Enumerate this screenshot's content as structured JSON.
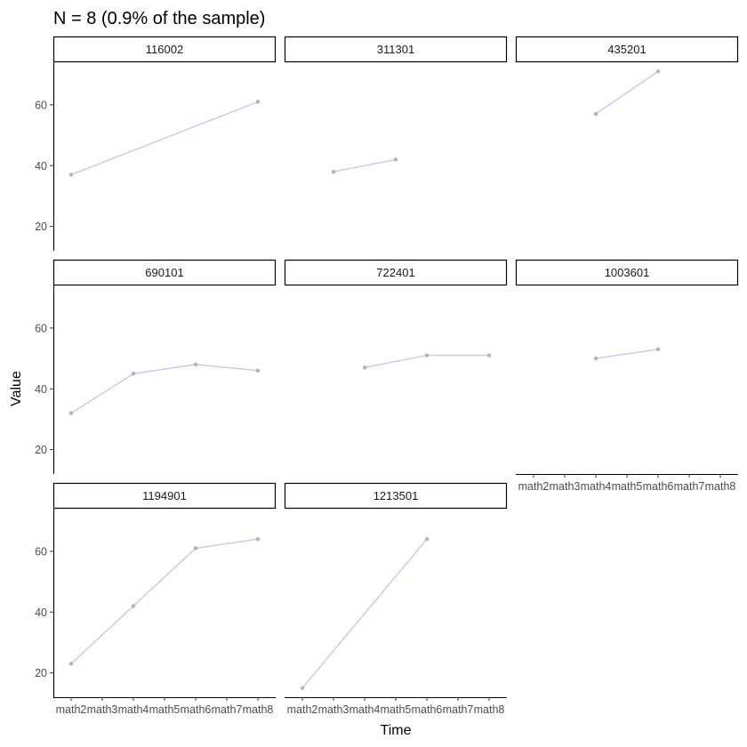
{
  "chart_data": {
    "type": "line",
    "title": "N = 8 (0.9% of the sample)",
    "xlabel": "Time",
    "ylabel": "Value",
    "categories": [
      "math2",
      "math3",
      "math4",
      "math5",
      "math6",
      "math7",
      "math8"
    ],
    "ylim": [
      12,
      74
    ],
    "yticks": [
      20,
      40,
      60
    ],
    "grid": false,
    "colors": {
      "line": "#c9c4f5",
      "point": "#a9a9c0",
      "strip_border": "#000000",
      "axis": "#000000"
    },
    "panels": [
      {
        "id": "116002",
        "points": [
          {
            "x": "math2",
            "y": 37
          },
          {
            "x": "math8",
            "y": 61
          }
        ]
      },
      {
        "id": "311301",
        "points": [
          {
            "x": "math3",
            "y": 38
          },
          {
            "x": "math5",
            "y": 42
          }
        ]
      },
      {
        "id": "435201",
        "points": [
          {
            "x": "math4",
            "y": 57
          },
          {
            "x": "math6",
            "y": 71
          }
        ]
      },
      {
        "id": "690101",
        "points": [
          {
            "x": "math2",
            "y": 32
          },
          {
            "x": "math4",
            "y": 45
          },
          {
            "x": "math6",
            "y": 48
          },
          {
            "x": "math8",
            "y": 46
          }
        ]
      },
      {
        "id": "722401",
        "points": [
          {
            "x": "math4",
            "y": 47
          },
          {
            "x": "math6",
            "y": 51
          },
          {
            "x": "math8",
            "y": 51
          }
        ]
      },
      {
        "id": "1003601",
        "points": [
          {
            "x": "math4",
            "y": 50
          },
          {
            "x": "math6",
            "y": 53
          }
        ]
      },
      {
        "id": "1194901",
        "points": [
          {
            "x": "math2",
            "y": 23
          },
          {
            "x": "math4",
            "y": 42
          },
          {
            "x": "math6",
            "y": 61
          },
          {
            "x": "math8",
            "y": 64
          }
        ]
      },
      {
        "id": "1213501",
        "points": [
          {
            "x": "math2",
            "y": 15
          },
          {
            "x": "math6",
            "y": 64
          }
        ]
      }
    ]
  }
}
